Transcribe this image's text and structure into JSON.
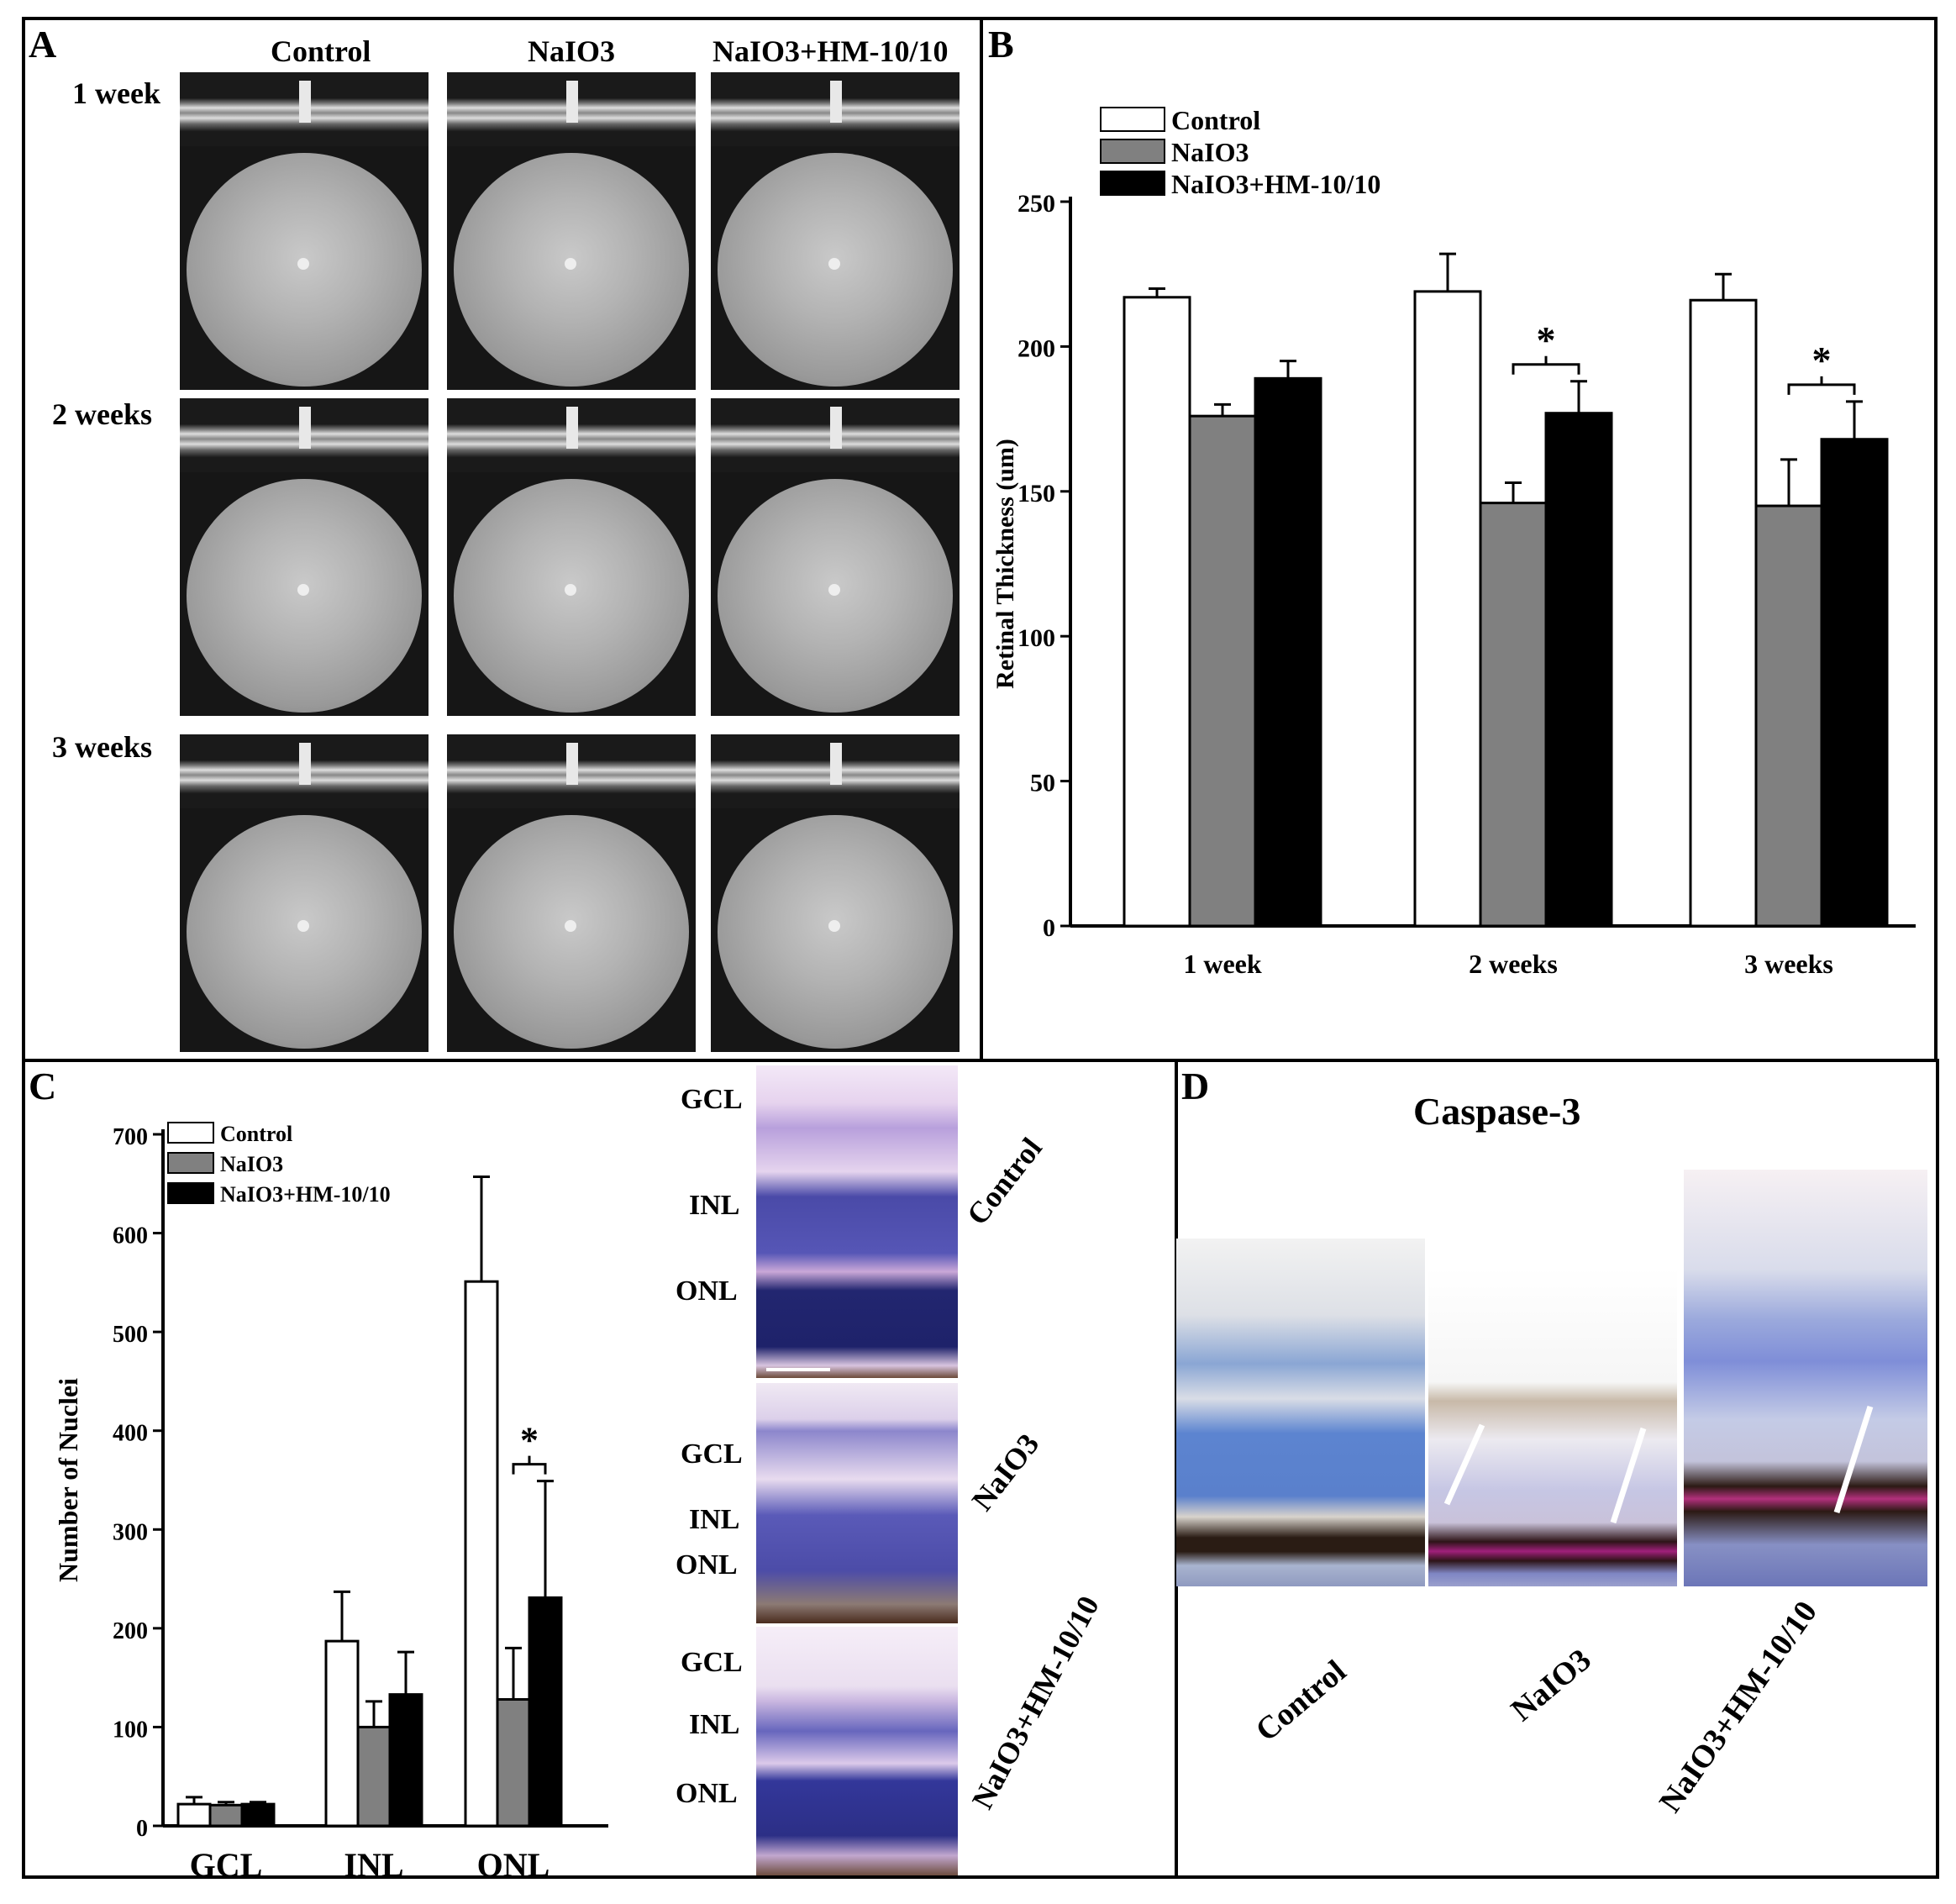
{
  "panels": {
    "a": "A",
    "b": "B",
    "c": "C",
    "d": "D"
  },
  "panel_a": {
    "columns": [
      "Control",
      "NaIO3",
      "NaIO3+HM-10/10"
    ],
    "rows": [
      "1 week",
      "2 weeks",
      "3 weeks"
    ]
  },
  "panel_c_sections": {
    "layers": [
      "GCL",
      "INL",
      "ONL"
    ],
    "groups": [
      "Control",
      "NaIO3",
      "NaIO3+HM-10/10"
    ]
  },
  "panel_d": {
    "title": "Caspase-3",
    "groups": [
      "Control",
      "NaIO3",
      "NaIO3+HM-10/10"
    ]
  },
  "colors": {
    "control": "#ffffff",
    "naio3": "#808080",
    "hm": "#000000"
  },
  "chart_data": [
    {
      "type": "bar",
      "categories": [
        "1 week",
        "2 weeks",
        "3 weeks"
      ],
      "ylabel": "Retinal Thickness (um)",
      "xlabel": "",
      "ylim": [
        0,
        250
      ],
      "yticks": [
        0,
        50,
        100,
        150,
        200,
        250
      ],
      "legend": "top-left",
      "series": [
        {
          "name": "Control",
          "values": [
            217,
            219,
            216
          ],
          "errors": [
            3,
            13,
            9
          ]
        },
        {
          "name": "NaIO3",
          "values": [
            176,
            146,
            145
          ],
          "errors": [
            4,
            7,
            16
          ]
        },
        {
          "name": "NaIO3+HM-10/10",
          "values": [
            189,
            177,
            168
          ],
          "errors": [
            6,
            11,
            13
          ]
        }
      ],
      "annotations": [
        {
          "text": "*",
          "category": "2 weeks"
        },
        {
          "text": "*",
          "category": "3 weeks"
        }
      ]
    },
    {
      "type": "bar",
      "categories": [
        "GCL",
        "INL",
        "ONL"
      ],
      "ylabel": "Number of Nuclei",
      "xlabel": "",
      "ylim": [
        0,
        700
      ],
      "yticks": [
        0,
        100,
        200,
        300,
        400,
        500,
        600,
        700
      ],
      "legend": "top-left",
      "series": [
        {
          "name": "Control",
          "values": [
            22,
            187,
            551
          ],
          "errors": [
            7,
            50,
            106
          ]
        },
        {
          "name": "NaIO3",
          "values": [
            21,
            100,
            128
          ],
          "errors": [
            3,
            26,
            52
          ]
        },
        {
          "name": "NaIO3+HM-10/10",
          "values": [
            22,
            133,
            231
          ],
          "errors": [
            2,
            43,
            118
          ]
        }
      ],
      "annotations": [
        {
          "text": "*",
          "category": "ONL"
        }
      ]
    }
  ]
}
